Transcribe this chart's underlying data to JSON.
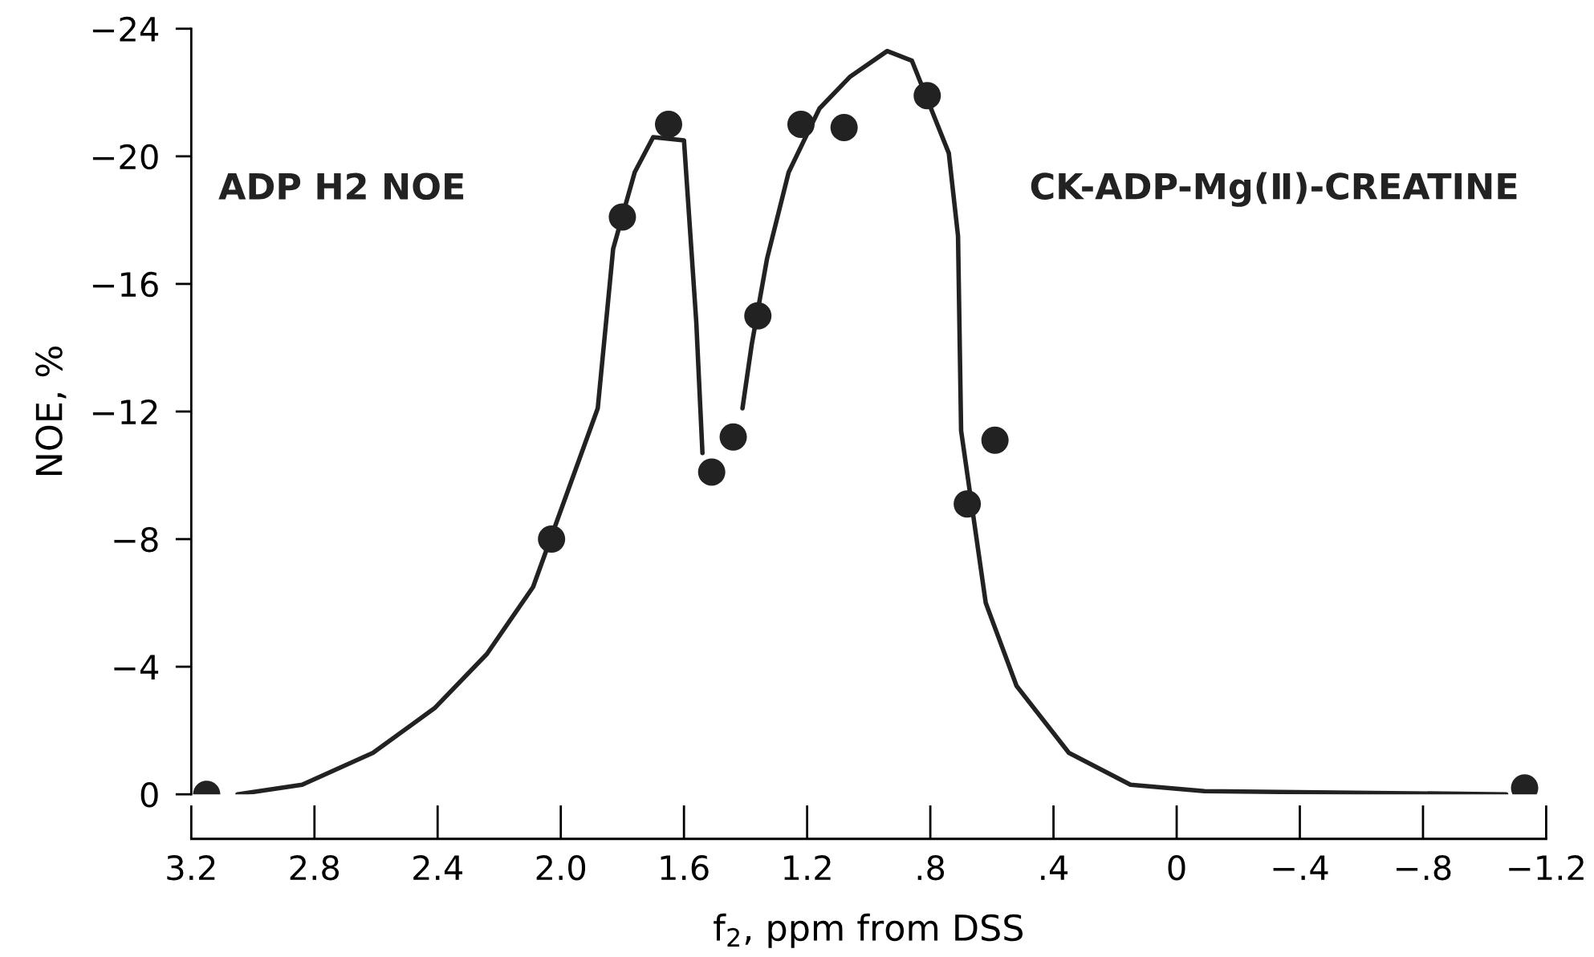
{
  "chart_data": {
    "type": "scatter",
    "xlabel": "f$_{2}$, ppm from DSS",
    "ylabel": "NOE, %",
    "annotations": [
      "ADP H2 NOE",
      "CK-ADP-Mg(Ⅱ)-CREATINE"
    ],
    "xlim": [
      3.2,
      -1.2
    ],
    "ylim": [
      0,
      -24
    ],
    "xticks": [
      {
        "value": 3.2,
        "label": "3.2"
      },
      {
        "value": 2.8,
        "label": "2.8"
      },
      {
        "value": 2.4,
        "label": "2.4"
      },
      {
        "value": 2.0,
        "label": "2.0"
      },
      {
        "value": 1.6,
        "label": "1.6"
      },
      {
        "value": 1.2,
        "label": "1.2"
      },
      {
        "value": 0.8,
        "label": ".8"
      },
      {
        "value": 0.4,
        "label": ".4"
      },
      {
        "value": 0,
        "label": "0"
      },
      {
        "value": -0.4,
        "label": "−.4"
      },
      {
        "value": -0.8,
        "label": "−.8"
      },
      {
        "value": -1.2,
        "label": "−1.2"
      }
    ],
    "yticks": [
      {
        "value": -24,
        "label": "−24"
      },
      {
        "value": -20,
        "label": "−20"
      },
      {
        "value": -16,
        "label": "−16"
      },
      {
        "value": -12,
        "label": "−12"
      },
      {
        "value": -8,
        "label": "−8"
      },
      {
        "value": -4,
        "label": "−4"
      },
      {
        "value": 0,
        "label": "0"
      }
    ],
    "grid": false,
    "legend": false,
    "marker": "circle",
    "series": [
      {
        "type": "line",
        "color": "#222222",
        "line_style": "solid",
        "marker": "none",
        "x": [
          3.05,
          2.84,
          2.61,
          2.41,
          2.24,
          2.09,
          1.88,
          1.83,
          1.76,
          1.7,
          1.6,
          1.56,
          1.54,
          1.47,
          1.41,
          1.38,
          1.33,
          1.26,
          1.16,
          1.06,
          0.94,
          0.86,
          0.74,
          0.71,
          0.7,
          0.62,
          0.52,
          0.35,
          0.15,
          -0.09,
          -1.07
        ],
        "values": [
          0,
          -0.3,
          -1.3,
          -2.7,
          -4.4,
          -6.5,
          -12.1,
          -17.1,
          -19.5,
          -20.6,
          -20.5,
          -14.8,
          -10.7,
          null,
          -12.1,
          -14.1,
          -16.8,
          -19.5,
          -21.5,
          -22.5,
          -23.3,
          -23.0,
          -20.1,
          -17.5,
          -11.4,
          -6.0,
          -3.4,
          -1.3,
          -0.3,
          -0.1,
          0
        ]
      },
      {
        "color": "#222222",
        "x": [
          3.15,
          2.03,
          1.8,
          1.65,
          1.51,
          1.44,
          1.36,
          1.22,
          1.08,
          0.81,
          0.68,
          0.59,
          -1.13
        ],
        "values": [
          0,
          -8,
          -18.1,
          -21,
          -10.1,
          -11.2,
          -15,
          -21,
          -20.9,
          -21.9,
          -9.1,
          -11.1,
          -0.2
        ]
      }
    ]
  }
}
